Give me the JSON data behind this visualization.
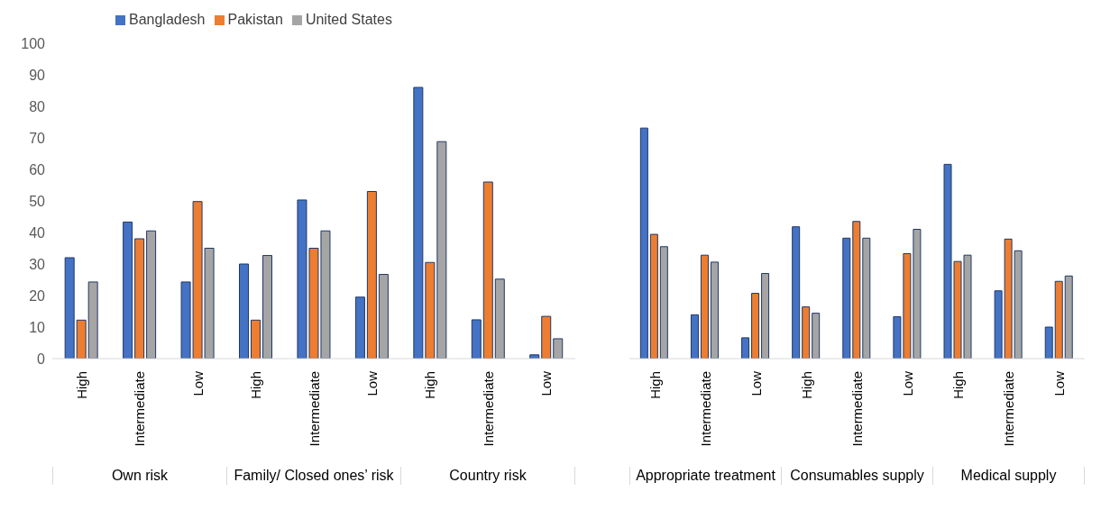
{
  "chart_data": [
    {
      "type": "bar",
      "categories": [
        "High",
        "Intermediate",
        "Low",
        "High",
        "Intermediate",
        "Low",
        "High",
        "Intermediate",
        "Low"
      ],
      "series": [
        {
          "name": "Bangladesh",
          "color": "#4472c4",
          "values": [
            32,
            43.3,
            24.3,
            30,
            50.3,
            19.5,
            86,
            12.3,
            1.2
          ]
        },
        {
          "name": "Pakistan",
          "color": "#ed7d31",
          "values": [
            12.2,
            38,
            49.8,
            12.2,
            35,
            53,
            30.5,
            56,
            13.4
          ]
        },
        {
          "name": "United States",
          "color": "#a5a5a5",
          "values": [
            24.3,
            40.5,
            35,
            32.7,
            40.5,
            26.7,
            68.8,
            25.2,
            6.3
          ]
        }
      ],
      "ylim": [
        0,
        100
      ],
      "yticks": [
        0,
        10,
        20,
        30,
        40,
        50,
        60,
        70,
        80,
        90,
        100
      ],
      "legend": "top left",
      "annotations": [
        "Own risk",
        "Family/ Closed ones’ risk",
        "Country risk"
      ]
    },
    {
      "type": "bar",
      "categories": [
        "High",
        "Intermediate",
        "Low",
        "High",
        "Intermediate",
        "Low",
        "High",
        "Intermediate",
        "Low"
      ],
      "series": [
        {
          "color": "#4472c4",
          "values": [
            73.1,
            13.9,
            6.6,
            41.8,
            38.2,
            13.3,
            61.6,
            21.5,
            10
          ]
        },
        {
          "color": "#ed7d31",
          "values": [
            39.4,
            32.8,
            20.7,
            16.4,
            43.5,
            33.3,
            30.8,
            37.9,
            24.5
          ]
        },
        {
          "color": "#a5a5a5",
          "values": [
            35.5,
            30.6,
            27,
            14.4,
            38.2,
            41,
            32.8,
            34.2,
            26.2
          ]
        }
      ],
      "ylim": [
        0,
        100
      ],
      "tick_labels": "x",
      "annotations": [
        "Appropriate treatment",
        "Consumables supply",
        "Medical supply"
      ]
    }
  ]
}
